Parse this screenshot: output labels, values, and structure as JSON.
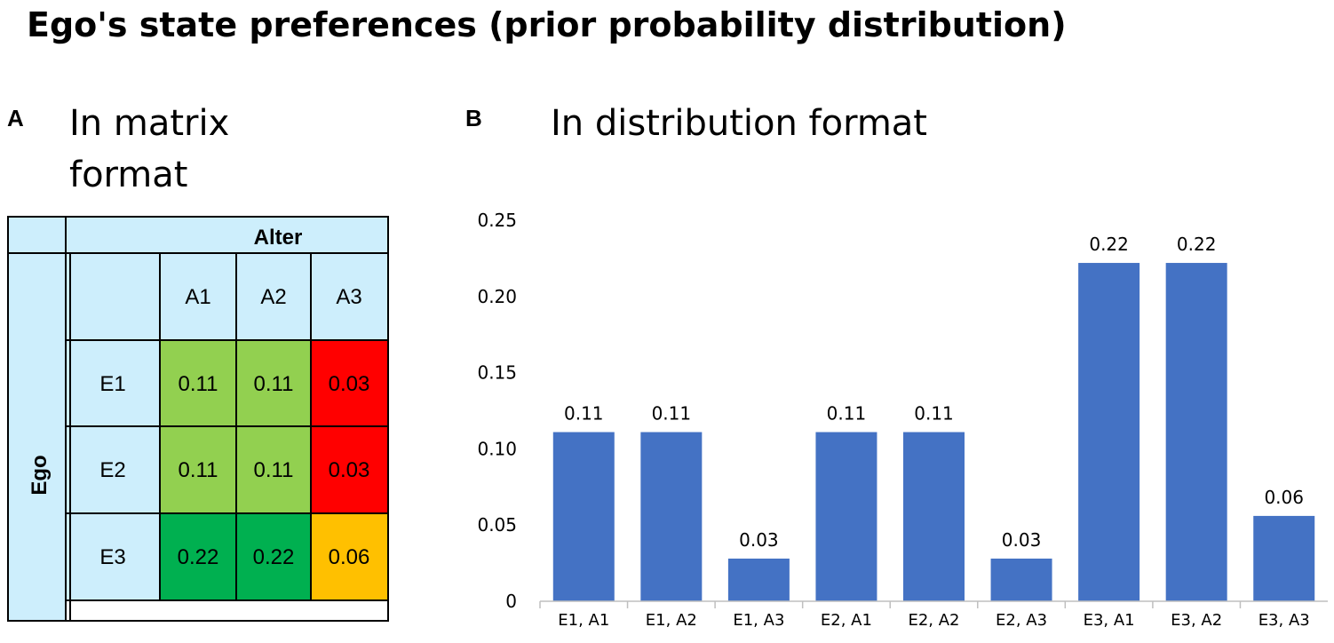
{
  "title": "Ego's state preferences (prior probability distribution)",
  "panel_a": {
    "letter": "A",
    "title_line1": "In matrix",
    "title_line2": "format",
    "alter_label": "Alter",
    "ego_label": "Ego",
    "col_headers": [
      "A1",
      "A2",
      "A3"
    ],
    "rows": [
      {
        "label": "E1",
        "cells": [
          "0.11",
          "0.11",
          "0.03"
        ],
        "colors": [
          "#92d050",
          "#92d050",
          "#ff0000"
        ]
      },
      {
        "label": "E2",
        "cells": [
          "0.11",
          "0.11",
          "0.03"
        ],
        "colors": [
          "#92d050",
          "#92d050",
          "#ff0000"
        ]
      },
      {
        "label": "E3",
        "cells": [
          "0.22",
          "0.22",
          "0.06"
        ],
        "colors": [
          "#00b050",
          "#00b050",
          "#ffc000"
        ]
      }
    ],
    "header_fill": "#cdeefc"
  },
  "panel_b": {
    "letter": "B",
    "title": "In distribution format"
  },
  "chart_data": {
    "type": "bar",
    "title": "In distribution format",
    "categories": [
      "E1, A1",
      "E1, A2",
      "E1, A3",
      "E2, A1",
      "E2, A2",
      "E2, A3",
      "E3, A1",
      "E3, A2",
      "E3, A3"
    ],
    "values": [
      0.11,
      0.11,
      0.03,
      0.11,
      0.11,
      0.03,
      0.22,
      0.22,
      0.06
    ],
    "value_labels": [
      "0.11",
      "0.11",
      "0.03",
      "0.11",
      "0.11",
      "0.03",
      "0.22",
      "0.22",
      "0.06"
    ],
    "bar_heights": [
      0.111,
      0.111,
      0.028,
      0.111,
      0.111,
      0.028,
      0.222,
      0.222,
      0.056
    ],
    "ylim": [
      0,
      0.25
    ],
    "yticks": [
      "0",
      "0.05",
      "0.10",
      "0.15",
      "0.20",
      "0.25"
    ],
    "ytick_values": [
      0,
      0.05,
      0.1,
      0.15,
      0.2,
      0.25
    ],
    "xlabel": "",
    "ylabel": "",
    "grid": false,
    "bar_color": "#4472c4"
  }
}
